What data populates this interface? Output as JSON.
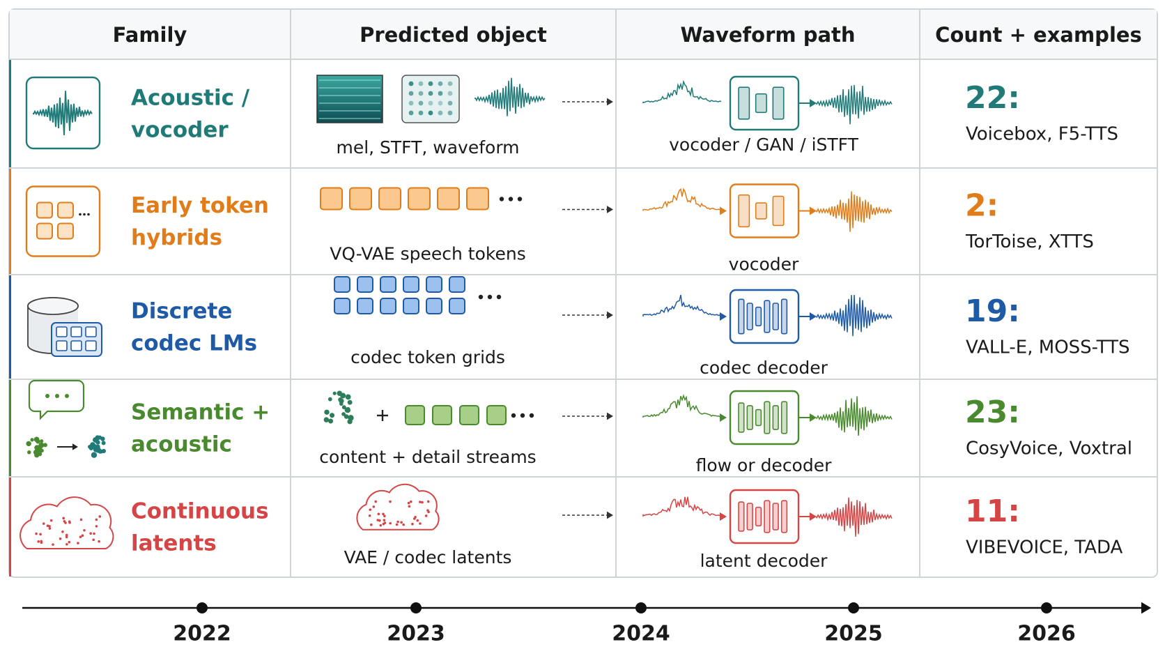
{
  "table": {
    "headers": [
      "Family",
      "Predicted object",
      "Waveform path",
      "Count + examples"
    ],
    "rows": [
      {
        "family": [
          "Acoustic /",
          "vocoder"
        ],
        "object": "mel, STFT, waveform",
        "path": "vocoder / GAN / iSTFT",
        "count": "22:",
        "examples": "Voicebox, F5-TTS",
        "color": "#1f7a78"
      },
      {
        "family": [
          "Early token",
          "hybrids"
        ],
        "object": "VQ-VAE speech tokens",
        "path": "vocoder",
        "count": "2:",
        "examples": "TorToise, XTTS",
        "color": "#e07d1a"
      },
      {
        "family": [
          "Discrete",
          "codec LMs"
        ],
        "object": "codec token grids",
        "path": "codec decoder",
        "count": "19:",
        "examples": "VALL-E, MOSS-TTS",
        "color": "#1f5aa6"
      },
      {
        "family": [
          "Semantic +",
          "acoustic"
        ],
        "object": "content + detail streams",
        "path": "flow or decoder",
        "count": "23:",
        "examples": "CosyVoice, Voxtral",
        "color": "#4a8a2e"
      },
      {
        "family": [
          "Continuous",
          "latents"
        ],
        "object": "VAE / codec latents",
        "path": "latent decoder",
        "count": "11:",
        "examples": "VIBEVOICE, TADA",
        "color": "#d64545"
      }
    ]
  },
  "timeline": {
    "years": [
      "2022",
      "2023",
      "2024",
      "2025",
      "2026"
    ]
  }
}
